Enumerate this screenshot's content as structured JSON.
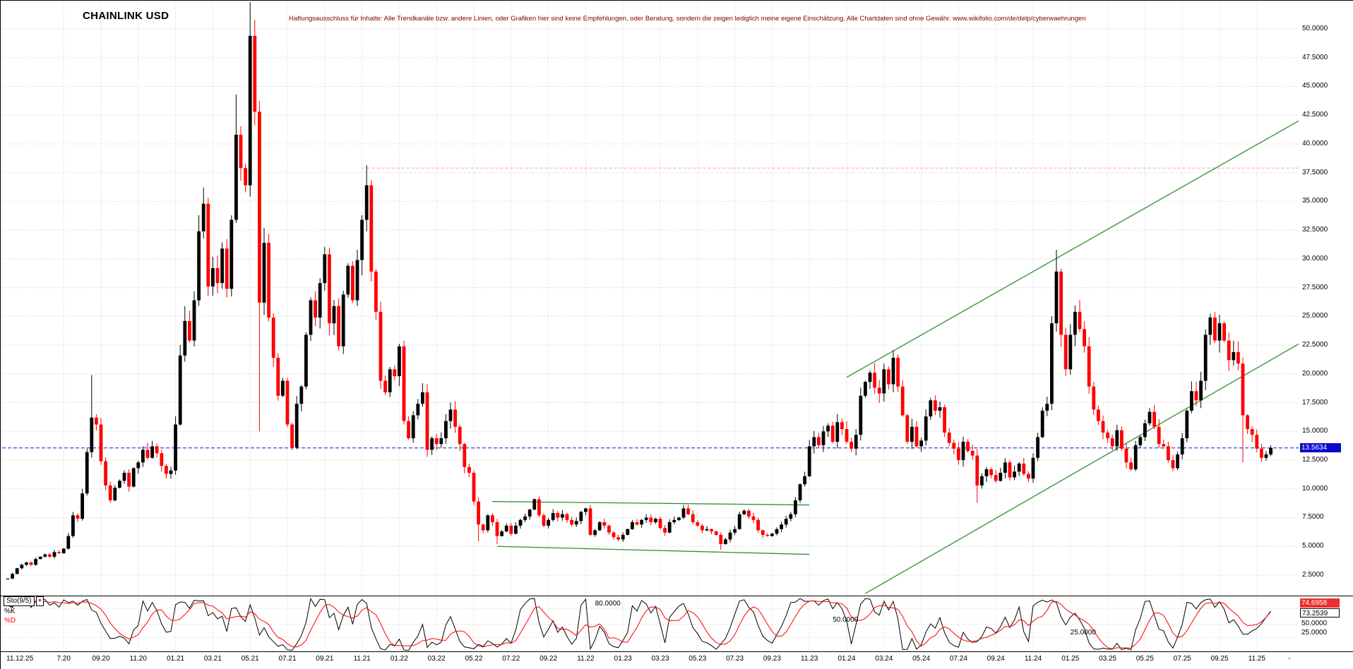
{
  "meta": {
    "title": "CHAINLINK USD",
    "disclaimer": "Haftungsausschluss für Inhalte: Alle Trendkanäle bzw. andere Linien, oder Grafiken hier sind keine Empfehlungen, oder Beratung, sondern die zeigen lediglich meine eigene Einschätzung. Alle Chartdaten sind ohne Gewähr. www.wikifolio.com/de/delp/cyberwaehrungen"
  },
  "colors": {
    "up": "#000000",
    "down": "#ff0000",
    "grid": "#cfcfcf",
    "trend": "#2f8f2f",
    "resistance": "#ff9a9a",
    "last_price_line": "#1414cc",
    "last_price_bg": "#0a0acc",
    "k_line": "#000000",
    "d_line": "#ff0000",
    "k_value_bg": "#e92f2f",
    "disclaimer": "#7c0303"
  },
  "axes": {
    "y_ticks": [
      "50.0000",
      "47.5000",
      "45.0000",
      "42.5000",
      "40.0000",
      "37.5000",
      "35.0000",
      "32.5000",
      "30.0000",
      "27.5000",
      "25.0000",
      "22.5000",
      "20.0000",
      "17.5000",
      "15.0000",
      "12.5000",
      "10.0000",
      "7.5000",
      "5.0000",
      "2.5000"
    ],
    "x_ticks": [
      {
        "label": "11.12.25",
        "week": 0,
        "align": "left",
        "grid": false
      },
      {
        "label": "7.20",
        "week": 12
      },
      {
        "label": "09.20",
        "week": 20
      },
      {
        "label": "11.20",
        "week": 28
      },
      {
        "label": "01.21",
        "week": 36
      },
      {
        "label": "03.21",
        "week": 44
      },
      {
        "label": "05.21",
        "week": 52
      },
      {
        "label": "07.21",
        "week": 60
      },
      {
        "label": "09.21",
        "week": 68
      },
      {
        "label": "11.21",
        "week": 76
      },
      {
        "label": "01.22",
        "week": 84
      },
      {
        "label": "03.22",
        "week": 92
      },
      {
        "label": "05.22",
        "week": 100
      },
      {
        "label": "07.22",
        "week": 108
      },
      {
        "label": "09.22",
        "week": 116
      },
      {
        "label": "11.22",
        "week": 124
      },
      {
        "label": "01.23",
        "week": 132
      },
      {
        "label": "03.23",
        "week": 140
      },
      {
        "label": "05.23",
        "week": 148
      },
      {
        "label": "07.23",
        "week": 156
      },
      {
        "label": "09.23",
        "week": 164
      },
      {
        "label": "11.23",
        "week": 172
      },
      {
        "label": "01.24",
        "week": 180
      },
      {
        "label": "03.24",
        "week": 188
      },
      {
        "label": "05.24",
        "week": 196
      },
      {
        "label": "07.24",
        "week": 204
      },
      {
        "label": "09.24",
        "week": 212
      },
      {
        "label": "11.24",
        "week": 220
      },
      {
        "label": "01.25",
        "week": 228
      },
      {
        "label": "03.25",
        "week": 236
      },
      {
        "label": "05.25",
        "week": 244
      },
      {
        "label": "07.25",
        "week": 252
      },
      {
        "label": "09.25",
        "week": 260
      },
      {
        "label": "11.25",
        "week": 268
      },
      {
        "label": "-",
        "week": 275,
        "grid": false
      }
    ],
    "last_price": "13.5634"
  },
  "indicator": {
    "name": "Sto(9/5)",
    "add_button": "+",
    "k_label": "%K",
    "d_label": "%D",
    "levels": [
      {
        "label": "80.0000",
        "value": 80,
        "x_week": 126
      },
      {
        "label": "50.0000",
        "value": 50,
        "x_week": 177
      },
      {
        "label": "25.0000",
        "value": 25,
        "x_week": 228
      }
    ],
    "readout": {
      "k": "74.6958",
      "d": "73.2539",
      "mid": "50.0000",
      "low": "25.0000"
    }
  },
  "chart_data": {
    "type": "candlestick",
    "symbol": "CHAINLINK USD",
    "timeframe": "weekly",
    "ylim": [
      0.7,
      52.4
    ],
    "price_gridlines": [
      2.5,
      5,
      7.5,
      10,
      12.5,
      15,
      17.5,
      20,
      22.5,
      25,
      27.5,
      30,
      32.5,
      35,
      37.5,
      40,
      42.5,
      45,
      47.5,
      50
    ],
    "weekly_closes": [
      2.2,
      2.6,
      3.1,
      3.4,
      3.6,
      3.4,
      3.9,
      4.1,
      4.3,
      4.1,
      4.5,
      4.4,
      4.8,
      5.9,
      7.7,
      7.4,
      9.6,
      13.2,
      16.2,
      15.6,
      12.4,
      10.3,
      9.0,
      10.1,
      10.7,
      11.4,
      10.2,
      11.8,
      12.3,
      13.4,
      12.7,
      13.7,
      13.1,
      12.0,
      11.3,
      11.6,
      15.6,
      21.6,
      24.6,
      22.9,
      26.4,
      32.4,
      34.8,
      27.6,
      29.2,
      27.9,
      30.9,
      27.4,
      33.4,
      40.8,
      37.9,
      36.4,
      49.4,
      42.8,
      26.2,
      31.4,
      24.9,
      21.4,
      18.1,
      19.4,
      15.6,
      13.6,
      17.4,
      18.9,
      23.4,
      26.4,
      24.9,
      27.9,
      30.4,
      24.4,
      25.9,
      22.4,
      26.9,
      29.4,
      26.4,
      29.9,
      33.4,
      36.4,
      28.9,
      25.4,
      19.4,
      18.4,
      20.4,
      19.8,
      22.4,
      15.9,
      14.4,
      16.4,
      17.4,
      18.4,
      13.4,
      14.4,
      13.9,
      14.4,
      15.9,
      16.9,
      15.4,
      13.9,
      11.9,
      11.4,
      8.9,
      6.9,
      6.4,
      7.7,
      7.1,
      5.9,
      6.3,
      6.8,
      6.1,
      6.8,
      7.3,
      7.6,
      8.2,
      9.1,
      7.7,
      6.8,
      7.3,
      7.9,
      7.5,
      7.8,
      7.3,
      6.9,
      7.2,
      8.0,
      8.3,
      6.0,
      6.4,
      7.1,
      6.8,
      6.2,
      5.8,
      5.6,
      6.0,
      6.5,
      7.1,
      6.9,
      7.3,
      7.5,
      7.1,
      7.4,
      6.6,
      6.2,
      7.1,
      7.3,
      7.5,
      8.3,
      7.8,
      7.1,
      6.8,
      6.4,
      6.5,
      6.3,
      6.0,
      5.2,
      5.6,
      6.2,
      6.5,
      7.8,
      8.1,
      7.6,
      7.3,
      6.4,
      6.0,
      5.9,
      6.1,
      6.5,
      6.9,
      7.4,
      7.8,
      9.0,
      10.4,
      11.1,
      13.7,
      14.5,
      13.8,
      15.0,
      15.5,
      14.1,
      15.8,
      15.2,
      14.1,
      13.5,
      14.7,
      18.1,
      19.3,
      20.1,
      18.8,
      18.3,
      20.4,
      19.1,
      21.4,
      18.9,
      16.4,
      14.1,
      15.4,
      13.7,
      14.2,
      16.3,
      17.7,
      16.8,
      17.1,
      14.9,
      14.0,
      13.5,
      12.5,
      14.1,
      13.3,
      12.9,
      10.3,
      11.1,
      11.7,
      11.2,
      10.7,
      11.4,
      12.3,
      11.0,
      11.5,
      12.2,
      11.3,
      10.9,
      12.7,
      14.5,
      16.8,
      17.4,
      24.4,
      28.9,
      23.4,
      20.4,
      23.4,
      25.4,
      23.9,
      22.4,
      18.9,
      16.9,
      15.9,
      14.9,
      14.4,
      13.7,
      15.1,
      13.5,
      12.3,
      11.7,
      13.8,
      14.5,
      15.7,
      16.7,
      15.4,
      13.9,
      13.7,
      12.5,
      11.8,
      13.0,
      14.4,
      16.8,
      18.5,
      17.7,
      19.4,
      23.4,
      24.9,
      22.9,
      24.4,
      22.9,
      21.2,
      21.9,
      20.9,
      16.4,
      15.2,
      14.7,
      13.5,
      12.7,
      13.0,
      13.5634
    ],
    "wick_overrides": [
      {
        "week": 18,
        "high": 19.9
      },
      {
        "week": 38,
        "high": 25.9
      },
      {
        "week": 42,
        "high": 36.2
      },
      {
        "week": 49,
        "high": 44.3
      },
      {
        "week": 52,
        "high": 52.88
      },
      {
        "week": 54,
        "low": 15.0
      },
      {
        "week": 77,
        "high": 38.15
      },
      {
        "week": 101,
        "low": 5.45
      },
      {
        "week": 105,
        "low": 5.2
      },
      {
        "week": 153,
        "low": 4.7
      },
      {
        "week": 208,
        "low": 8.8
      },
      {
        "week": 225,
        "high": 30.8
      },
      {
        "week": 265,
        "low": 12.3
      }
    ],
    "overlays": {
      "resistance_price": 37.9,
      "resistance_from_week": 76,
      "last_price_line": 13.5634,
      "channels": [
        {
          "x1_week": 104,
          "p1": 8.9,
          "x2_week": 172,
          "p2": 8.6
        },
        {
          "x1_week": 105,
          "p1": 5.0,
          "x2_week": 172,
          "p2": 4.3
        },
        {
          "x1_week": 180,
          "p1": 19.7,
          "x2_week": 277,
          "p2": 42.0
        },
        {
          "x1_week": 184,
          "p1": 0.9,
          "x2_week": 277,
          "p2": 22.6
        }
      ]
    },
    "stochastic": {
      "period": 9,
      "smooth": 5,
      "end_k": 74.6958,
      "end_d": 73.2539,
      "panel_levels": [
        80,
        50,
        25
      ]
    }
  }
}
